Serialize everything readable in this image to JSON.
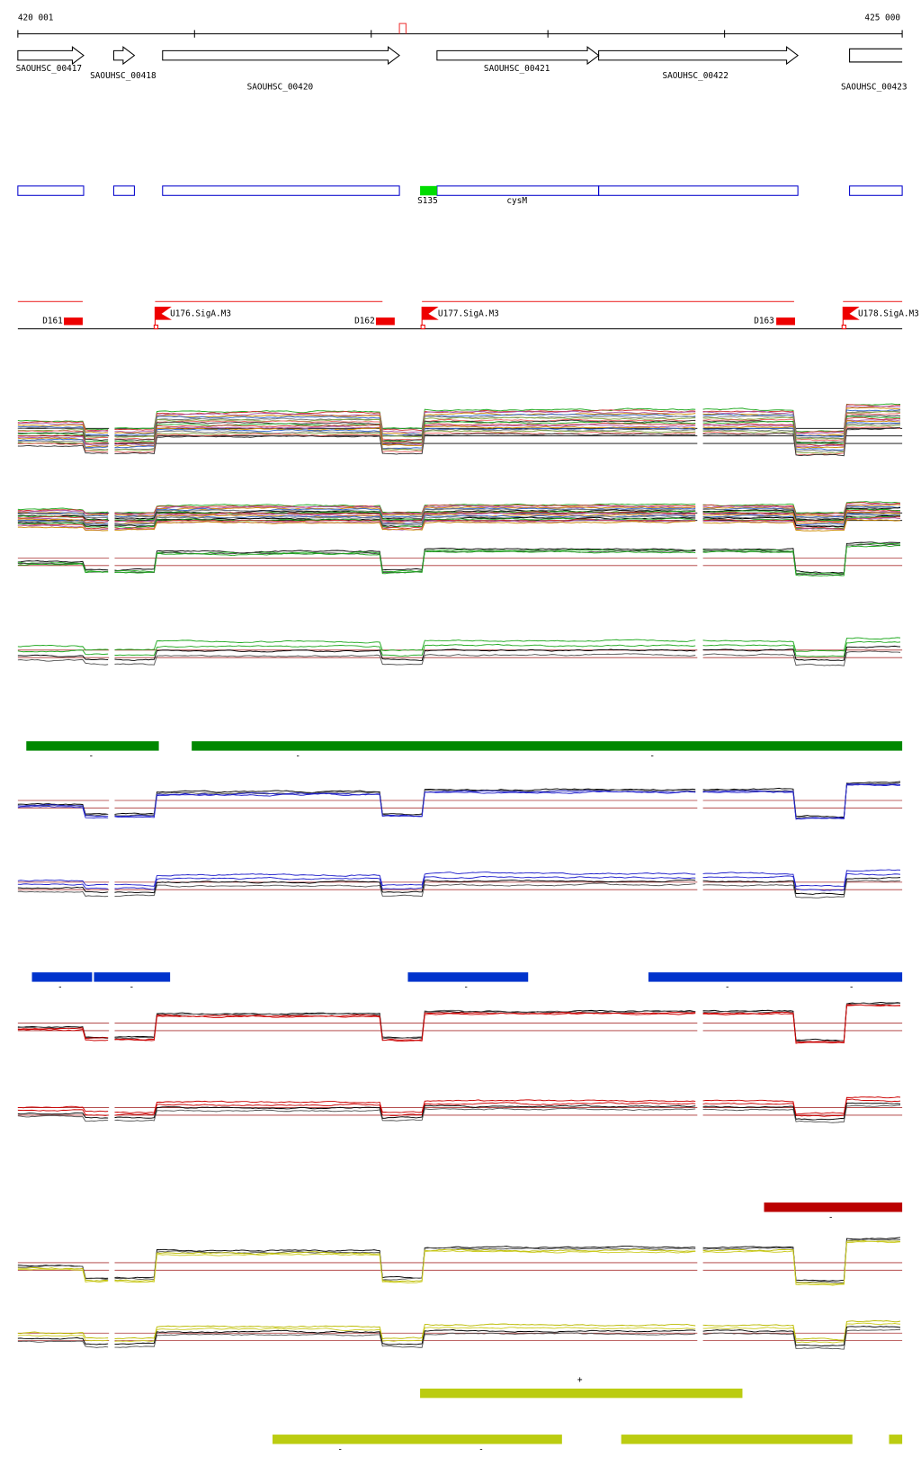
{
  "ruler": {
    "start": "420 001",
    "end": "425 000"
  },
  "genes": [
    {
      "label": "SAOUHSC_00417"
    },
    {
      "label": "SAOUHSC_00418"
    },
    {
      "label": "SAOUHSC_00420"
    },
    {
      "label": "SAOUHSC_00421"
    },
    {
      "label": "SAOUHSC_00422"
    },
    {
      "label": "SAOUHSC_00423"
    }
  ],
  "features": [
    {
      "label": "S135"
    },
    {
      "label": "cysM"
    }
  ],
  "promoters": [
    {
      "label": "D161"
    },
    {
      "label": "U176.SigA.M3"
    },
    {
      "label": "D162"
    },
    {
      "label": "U177.SigA.M3"
    },
    {
      "label": "D163"
    },
    {
      "label": "U178.SigA.M3"
    }
  ],
  "segment_tracks": [
    {
      "strands": [
        "-",
        "-",
        "-"
      ]
    },
    {
      "strands": [
        "-",
        "-",
        "-",
        "-",
        "-"
      ]
    },
    {
      "strands": [
        "-"
      ]
    },
    {
      "strands": [
        "+"
      ]
    },
    {
      "strands": [
        "-",
        "-"
      ]
    }
  ]
}
